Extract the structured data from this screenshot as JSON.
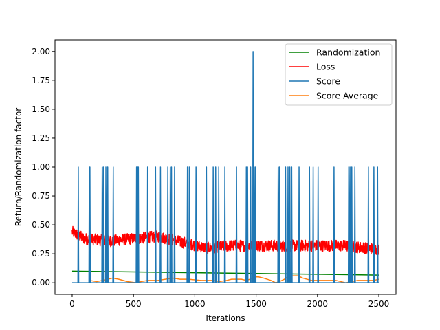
{
  "chart_data": {
    "type": "line",
    "xlabel": "Iterations",
    "ylabel": "Return/Randomization factor",
    "xlim": [
      -140,
      2640
    ],
    "ylim": [
      -0.1,
      2.1
    ],
    "x_ticks": [
      0,
      500,
      1000,
      1500,
      2000,
      2500
    ],
    "x_tick_labels": [
      "0",
      "500",
      "1000",
      "1500",
      "2000",
      "2500"
    ],
    "y_ticks": [
      0.0,
      0.25,
      0.5,
      0.75,
      1.0,
      1.25,
      1.5,
      1.75,
      2.0
    ],
    "y_tick_labels": [
      "0.00",
      "0.25",
      "0.50",
      "0.75",
      "1.00",
      "1.25",
      "1.50",
      "1.75",
      "2.00"
    ],
    "grid": false,
    "legend_position": "top-right",
    "series": [
      {
        "name": "Randomization",
        "color": "#008000",
        "kind": "linear",
        "x": [
          0,
          2500
        ],
        "y": [
          0.1,
          0.066
        ]
      },
      {
        "name": "Loss",
        "color": "#ff0000",
        "kind": "noisy",
        "x_range": [
          0,
          2500
        ],
        "trend": [
          [
            0,
            0.44
          ],
          [
            100,
            0.38
          ],
          [
            300,
            0.36
          ],
          [
            500,
            0.38
          ],
          [
            700,
            0.4
          ],
          [
            900,
            0.35
          ],
          [
            1100,
            0.3
          ],
          [
            1300,
            0.32
          ],
          [
            1600,
            0.32
          ],
          [
            1900,
            0.32
          ],
          [
            2200,
            0.32
          ],
          [
            2500,
            0.29
          ]
        ],
        "noise": 0.05,
        "ymin": 0.2,
        "ymax": 0.52
      },
      {
        "name": "Score",
        "color": "#1f77b4",
        "kind": "spikes",
        "baseline": 0,
        "x_range": [
          0,
          2500
        ],
        "spikes": [
          [
            50,
            1
          ],
          [
            140,
            1
          ],
          [
            145,
            1
          ],
          [
            245,
            1
          ],
          [
            255,
            1
          ],
          [
            275,
            1
          ],
          [
            285,
            1
          ],
          [
            290,
            1
          ],
          [
            335,
            1
          ],
          [
            525,
            1
          ],
          [
            535,
            1
          ],
          [
            540,
            1
          ],
          [
            615,
            1
          ],
          [
            680,
            1
          ],
          [
            720,
            1
          ],
          [
            780,
            1
          ],
          [
            800,
            1
          ],
          [
            810,
            1
          ],
          [
            835,
            1
          ],
          [
            940,
            1
          ],
          [
            955,
            1
          ],
          [
            1010,
            1
          ],
          [
            1095,
            1
          ],
          [
            1150,
            1
          ],
          [
            1170,
            1
          ],
          [
            1195,
            1
          ],
          [
            1245,
            1
          ],
          [
            1340,
            1
          ],
          [
            1420,
            1
          ],
          [
            1430,
            1
          ],
          [
            1455,
            1
          ],
          [
            1475,
            2
          ],
          [
            1485,
            1
          ],
          [
            1495,
            1
          ],
          [
            1680,
            1
          ],
          [
            1690,
            1
          ],
          [
            1740,
            1
          ],
          [
            1760,
            1
          ],
          [
            1775,
            1
          ],
          [
            1790,
            1
          ],
          [
            1850,
            1
          ],
          [
            1935,
            1
          ],
          [
            1965,
            1
          ],
          [
            2005,
            1
          ],
          [
            2135,
            1
          ],
          [
            2255,
            1
          ],
          [
            2265,
            1
          ],
          [
            2280,
            1
          ],
          [
            2305,
            1
          ],
          [
            2415,
            1
          ],
          [
            2460,
            1
          ],
          [
            2490,
            1
          ]
        ]
      },
      {
        "name": "Score Average",
        "color": "#ff7f0e",
        "kind": "line",
        "x": [
          140,
          200,
          250,
          290,
          330,
          380,
          450,
          520,
          560,
          620,
          700,
          760,
          820,
          880,
          950,
          1050,
          1150,
          1200,
          1260,
          1300,
          1380,
          1420,
          1450,
          1480,
          1520,
          1560,
          1620,
          1660,
          1690,
          1730,
          1760,
          1800,
          1840,
          1880,
          1950,
          2050,
          2150,
          2230,
          2280,
          2330,
          2400,
          2460,
          2500
        ],
        "y": [
          0.02,
          0.01,
          0.02,
          0.03,
          0.04,
          0.03,
          0.01,
          0.0,
          0.01,
          0.02,
          0.02,
          0.03,
          0.04,
          0.03,
          0.03,
          0.02,
          0.02,
          0.01,
          0.02,
          0.03,
          0.03,
          0.02,
          0.03,
          0.05,
          0.05,
          0.04,
          0.02,
          0.0,
          0.01,
          0.03,
          0.05,
          0.06,
          0.06,
          0.04,
          0.02,
          0.02,
          0.02,
          0.0,
          0.01,
          0.02,
          0.02,
          0.02,
          0.03
        ]
      }
    ]
  }
}
